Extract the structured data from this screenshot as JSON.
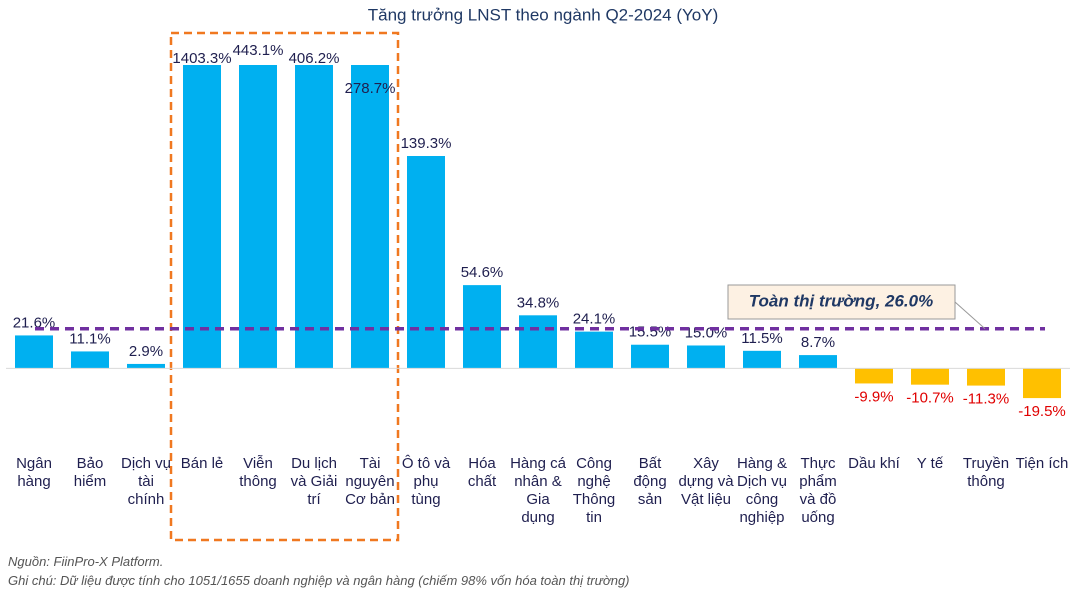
{
  "chart_data": {
    "type": "bar",
    "title": "Tăng trưởng LNST theo ngành Q2-2024 (YoY)",
    "categories": [
      "Ngân hàng",
      "Bảo hiểm",
      "Dịch vụ tài chính",
      "Bán lẻ",
      "Viễn thông",
      "Du lịch và Giải trí",
      "Tài nguyên Cơ bản",
      "Ô tô và phụ tùng",
      "Hóa chất",
      "Hàng cá nhân & Gia dụng",
      "Công nghệ Thông tin",
      "Bất động sản",
      "Xây dựng và Vật liệu",
      "Hàng & Dịch vụ công nghiệp",
      "Thực phẩm và đồ uống",
      "Dầu khí",
      "Y tế",
      "Truyền thông",
      "Tiện ích"
    ],
    "values": [
      21.6,
      11.1,
      2.9,
      1403.3,
      443.1,
      406.2,
      278.7,
      139.3,
      54.6,
      34.8,
      24.1,
      15.5,
      15.0,
      11.5,
      8.7,
      -9.9,
      -10.7,
      -11.3,
      -19.5
    ],
    "value_labels": [
      "21.6%",
      "11.1%",
      "2.9%",
      "1403.3%",
      "443.1%",
      "406.2%",
      "278.7%",
      "139.3%",
      "54.6%",
      "34.8%",
      "24.1%",
      "15.5%",
      "15.0%",
      "11.5%",
      "8.7%",
      "-9.9%",
      "-10.7%",
      "-11.3%",
      "-19.5%"
    ],
    "positive_color": "#00b0f0",
    "negative_color": "#ffc000",
    "ylim": [
      -47,
      199
    ],
    "reference_line": {
      "value": 26.0,
      "label": "Toàn thị trường, 26.0%",
      "color": "#7030a0"
    },
    "notes": [
      "Nguồn: FiinPro-X Platform.",
      "Ghi chú: Dữ liệu được tính cho 1051/1655 doanh nghiệp và ngân hàng (chiếm 98% vốn hóa toàn thị trường)"
    ]
  }
}
